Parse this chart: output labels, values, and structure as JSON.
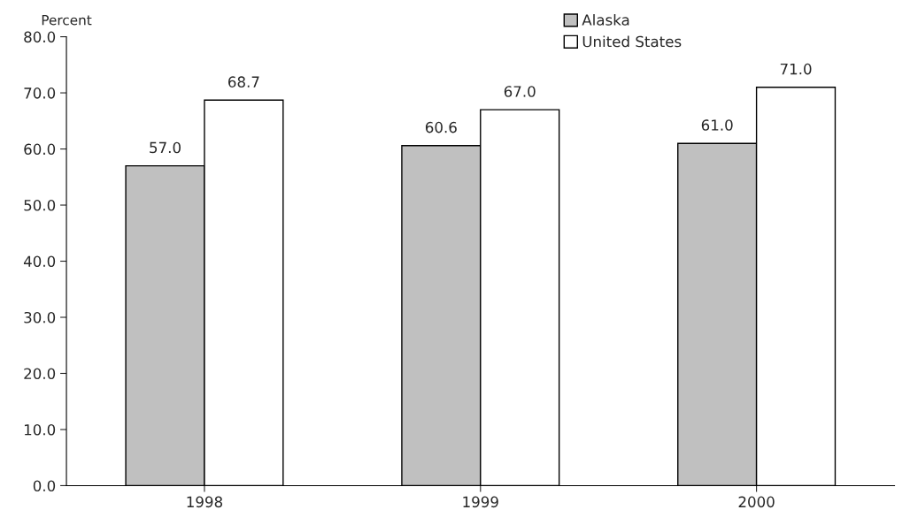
{
  "chart_data": {
    "type": "bar",
    "ylabel": "Percent",
    "categories": [
      "1998",
      "1999",
      "2000"
    ],
    "series": [
      {
        "name": "Alaska",
        "color": "#c0c0c0",
        "values": [
          57.0,
          60.6,
          61.0
        ],
        "value_labels": [
          "57.0",
          "60.6",
          "61.0"
        ]
      },
      {
        "name": "United States",
        "color": "#ffffff",
        "values": [
          68.7,
          67.0,
          71.0
        ],
        "value_labels": [
          "68.7",
          "67.0",
          "71.0"
        ]
      }
    ],
    "ylim": [
      0,
      80
    ],
    "yticks": [
      {
        "value": 0,
        "label": "0.0"
      },
      {
        "value": 10,
        "label": "10.0"
      },
      {
        "value": 20,
        "label": "20.0"
      },
      {
        "value": 30,
        "label": "30.0"
      },
      {
        "value": 40,
        "label": "40.0"
      },
      {
        "value": 50,
        "label": "50.0"
      },
      {
        "value": 60,
        "label": "60.0"
      },
      {
        "value": 70,
        "label": "70.0"
      },
      {
        "value": 80,
        "label": "80.0"
      }
    ],
    "grid": false,
    "legend": "top right"
  }
}
